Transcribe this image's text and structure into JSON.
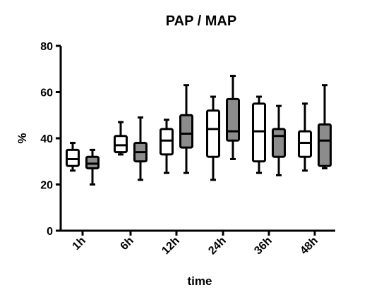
{
  "chart_data": {
    "type": "box",
    "title": "PAP / MAP",
    "xlabel": "time",
    "ylabel": "%",
    "ylim": [
      0,
      80
    ],
    "yticks": [
      0,
      20,
      40,
      60,
      80
    ],
    "categories": [
      "1h",
      "6h",
      "12h",
      "24h",
      "36h",
      "48h"
    ],
    "grid": false,
    "legend": "none",
    "series": [
      {
        "fill": "#ffffff",
        "boxes": [
          {
            "min": 26,
            "q1": 28,
            "median": 31,
            "q3": 35,
            "max": 38
          },
          {
            "min": 33,
            "q1": 34,
            "median": 37,
            "q3": 41,
            "max": 47
          },
          {
            "min": 25,
            "q1": 33,
            "median": 39,
            "q3": 44,
            "max": 48
          },
          {
            "min": 22,
            "q1": 32,
            "median": 44,
            "q3": 52,
            "max": 58
          },
          {
            "min": 25,
            "q1": 30,
            "median": 43,
            "q3": 55,
            "max": 58
          },
          {
            "min": 26,
            "q1": 32,
            "median": 38,
            "q3": 43,
            "max": 55
          }
        ]
      },
      {
        "fill": "#8c8c8c",
        "boxes": [
          {
            "min": 20,
            "q1": 27,
            "median": 29,
            "q3": 32,
            "max": 35
          },
          {
            "min": 22,
            "q1": 30,
            "median": 34,
            "q3": 38,
            "max": 49
          },
          {
            "min": 25,
            "q1": 36,
            "median": 42,
            "q3": 50,
            "max": 63
          },
          {
            "min": 31,
            "q1": 39,
            "median": 43,
            "q3": 57,
            "max": 67
          },
          {
            "min": 24,
            "q1": 32,
            "median": 41,
            "q3": 44,
            "max": 54
          },
          {
            "min": 27,
            "q1": 28,
            "median": 39,
            "q3": 46,
            "max": 63
          }
        ]
      }
    ]
  }
}
